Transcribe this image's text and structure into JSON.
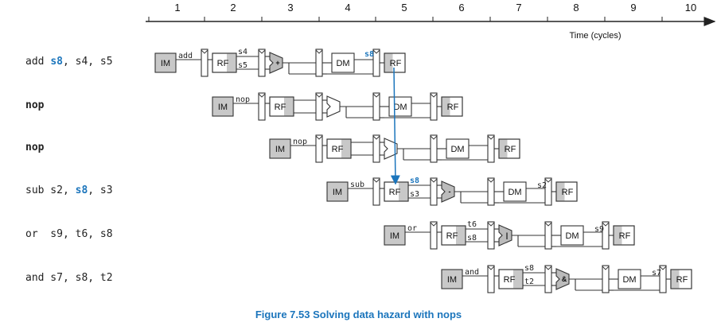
{
  "axis": {
    "ticks": [
      "1",
      "2",
      "3",
      "4",
      "5",
      "6",
      "7",
      "8",
      "9",
      "10"
    ],
    "label": "Time (cycles)"
  },
  "instructions": [
    {
      "parts": [
        {
          "t": "add "
        },
        {
          "t": "s8",
          "hl": true
        },
        {
          "t": ", s4, s5"
        }
      ],
      "bold": false,
      "im_label": "add",
      "rf_top": "s4",
      "rf_bottom": "s5",
      "alu": "+",
      "dm_tag": "s8",
      "wb": ""
    },
    {
      "parts": [
        {
          "t": "nop"
        }
      ],
      "bold": true,
      "im_label": "nop",
      "rf_top": "",
      "rf_bottom": "",
      "alu": "",
      "dm_tag": "",
      "wb": ""
    },
    {
      "parts": [
        {
          "t": "nop"
        }
      ],
      "bold": true,
      "im_label": "nop",
      "rf_top": "",
      "rf_bottom": "",
      "alu": "",
      "dm_tag": "",
      "wb": ""
    },
    {
      "parts": [
        {
          "t": "sub s2, "
        },
        {
          "t": "s8",
          "hl": true
        },
        {
          "t": ", s3"
        }
      ],
      "bold": false,
      "im_label": "sub",
      "rf_top": "s8",
      "rf_bottom": "s3",
      "alu": "-",
      "dm_tag": "",
      "wb": "s2"
    },
    {
      "parts": [
        {
          "t": "or  s9, t6, s8"
        }
      ],
      "bold": false,
      "im_label": "or",
      "rf_top": "t6",
      "rf_bottom": "s8",
      "alu": "|",
      "dm_tag": "",
      "wb": "s9"
    },
    {
      "parts": [
        {
          "t": "and s7, s8, t2"
        }
      ],
      "bold": false,
      "im_label": "and",
      "rf_top": "s8",
      "rf_bottom": "t2",
      "alu": "&",
      "dm_tag": "",
      "wb": "s7"
    }
  ],
  "stage_labels": {
    "im": "IM",
    "rf": "RF",
    "dm": "DM"
  },
  "colors": {
    "accent": "#1b75bc",
    "shade": "#c8c8c8",
    "stroke": "#333333"
  },
  "caption": "Figure 7.53 Solving data hazard with nops"
}
